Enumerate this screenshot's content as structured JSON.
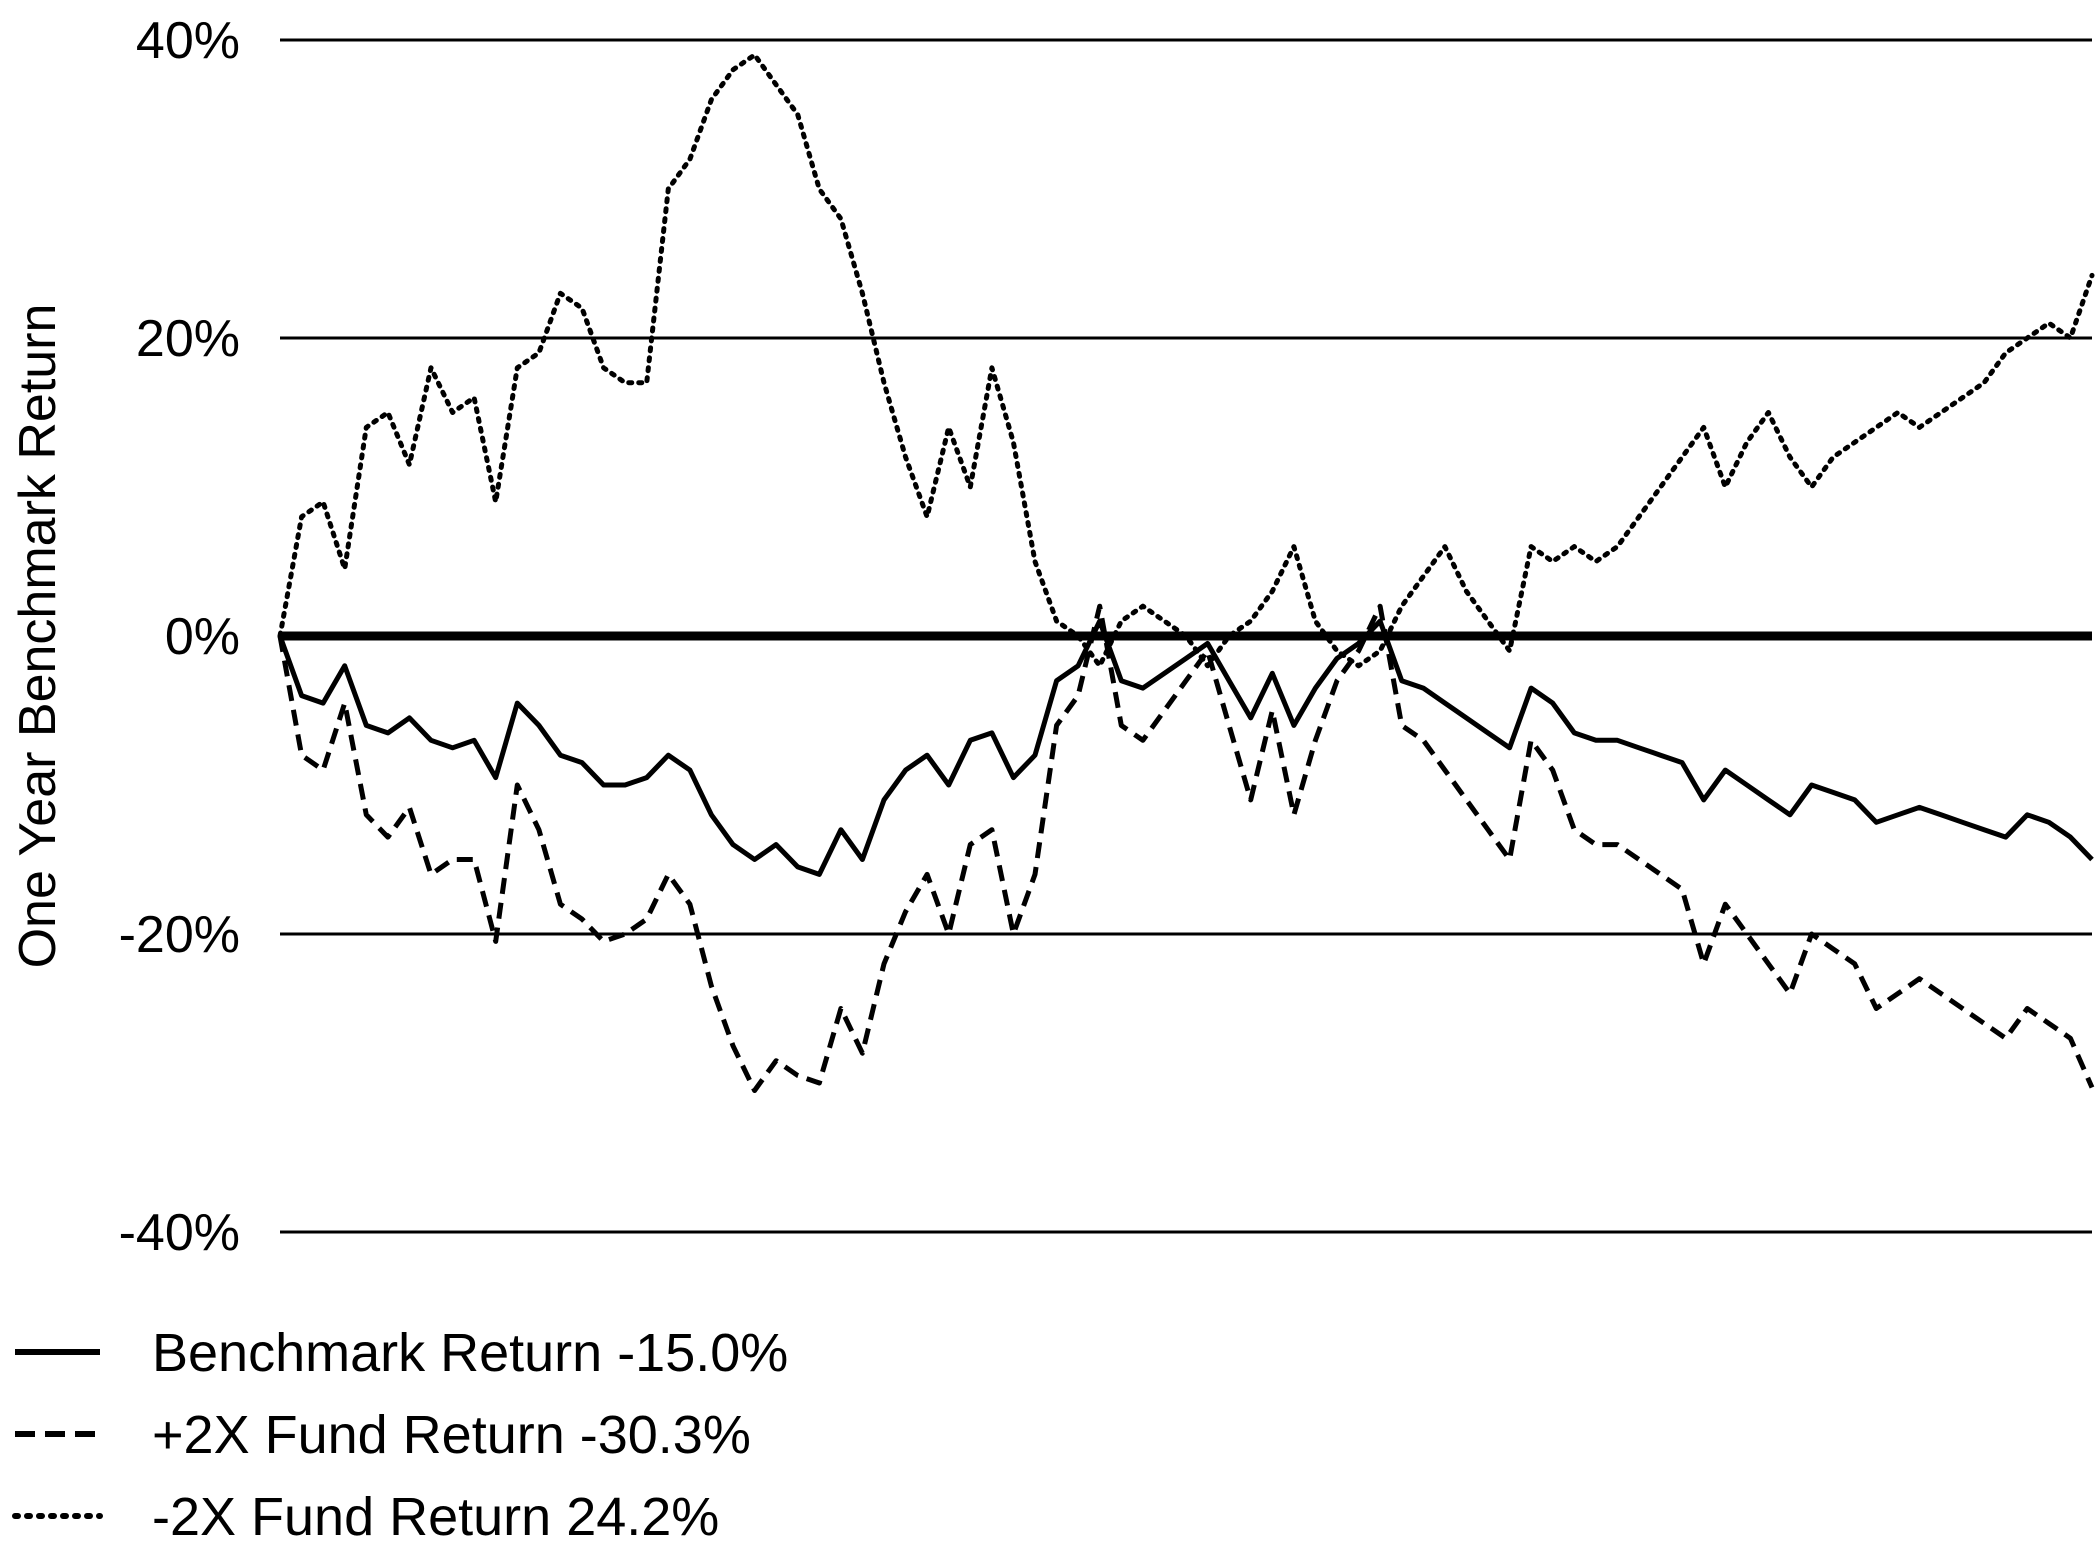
{
  "chart_data": {
    "type": "line",
    "ylabel": "One Year Benchmark Return",
    "xlabel": "",
    "ylim": [
      -40,
      40
    ],
    "yticks": [
      40,
      20,
      0,
      -20,
      -40
    ],
    "ytick_labels": [
      "40%",
      "20%",
      "0%",
      "-20%",
      "-40%"
    ],
    "grid": "horizontal",
    "legend_position": "bottom-left",
    "x": [
      0,
      3,
      6,
      9,
      12,
      15,
      18,
      21,
      24,
      27,
      30,
      33,
      36,
      39,
      42,
      45,
      48,
      51,
      54,
      57,
      60,
      63,
      66,
      69,
      72,
      75,
      78,
      81,
      84,
      87,
      90,
      93,
      96,
      99,
      102,
      105,
      108,
      111,
      114,
      117,
      120,
      123,
      126,
      129,
      132,
      135,
      138,
      141,
      144,
      147,
      150,
      153,
      156,
      159,
      162,
      165,
      168,
      171,
      174,
      177,
      180,
      183,
      186,
      189,
      192,
      195,
      198,
      201,
      204,
      207,
      210,
      213,
      216,
      219,
      222,
      225,
      228,
      231,
      234,
      237,
      240,
      243,
      246,
      249,
      252
    ],
    "series": [
      {
        "name": "Benchmark Return -15.0%",
        "style": "solid",
        "values": [
          0,
          -4,
          -4.5,
          -2,
          -6,
          -6.5,
          -5.5,
          -7,
          -7.5,
          -7,
          -9.5,
          -4.5,
          -6,
          -8,
          -8.5,
          -10,
          -10,
          -9.5,
          -8,
          -9,
          -12,
          -14,
          -15,
          -14,
          -15.5,
          -16,
          -13,
          -15,
          -11,
          -9,
          -8,
          -10,
          -7,
          -6.5,
          -9.5,
          -8,
          -3,
          -2,
          1,
          -3,
          -3.5,
          -2.5,
          -1.5,
          -0.5,
          -3,
          -5.5,
          -2.5,
          -6,
          -3.5,
          -1.5,
          -0.5,
          1,
          -3,
          -3.5,
          -4.5,
          -5.5,
          -6.5,
          -7.5,
          -3.5,
          -4.5,
          -6.5,
          -7,
          -7,
          -7.5,
          -8,
          -8.5,
          -11,
          -9,
          -10,
          -11,
          -12,
          -10,
          -10.5,
          -11,
          -12.5,
          -12,
          -11.5,
          -12,
          -12.5,
          -13,
          -13.5,
          -12,
          -12.5,
          -13.5,
          -15
        ]
      },
      {
        "name": "+2X Fund Return -30.3%",
        "style": "dashed",
        "values": [
          0,
          -8,
          -9,
          -4.5,
          -12,
          -13.5,
          -11.5,
          -16,
          -15,
          -15,
          -20.5,
          -10,
          -13,
          -18,
          -19,
          -20.5,
          -20,
          -19,
          -16,
          -18,
          -23.5,
          -27.5,
          -30.5,
          -28.5,
          -29.5,
          -30,
          -25,
          -28,
          -22,
          -18.5,
          -16,
          -20,
          -14,
          -13,
          -20,
          -16,
          -6,
          -4,
          2,
          -6,
          -7,
          -5,
          -3,
          -1,
          -6,
          -11,
          -5,
          -12,
          -7,
          -3,
          -1,
          2,
          -6,
          -7,
          -9,
          -11,
          -13,
          -15,
          -7,
          -9,
          -13,
          -14,
          -14,
          -15,
          -16,
          -17,
          -22,
          -18,
          -20,
          -22,
          -24,
          -20,
          -21,
          -22,
          -25,
          -24,
          -23,
          -24,
          -25,
          -26,
          -27,
          -25,
          -26,
          -27,
          -30.3
        ]
      },
      {
        "name": "-2X Fund Return 24.2%",
        "style": "dotted",
        "values": [
          0,
          8,
          9,
          4.5,
          14,
          15,
          11.5,
          18,
          15,
          16,
          9,
          18,
          19,
          23,
          22,
          18,
          17,
          17,
          30,
          32,
          36,
          38,
          39,
          37,
          35,
          30,
          28,
          23,
          17,
          12,
          8,
          14,
          10,
          18,
          13,
          5,
          1,
          0,
          -2,
          1,
          2,
          1,
          0,
          -2,
          0,
          1,
          3,
          6,
          1,
          -1,
          -2,
          -1,
          2,
          4,
          6,
          3,
          1,
          -1,
          6,
          5,
          6,
          5,
          6,
          8,
          10,
          12,
          14,
          10,
          13,
          15,
          12,
          10,
          12,
          13,
          14,
          15,
          14,
          15,
          16,
          17,
          19,
          20,
          21,
          20,
          24.2
        ]
      }
    ]
  },
  "legend": {
    "items": [
      {
        "label": "Benchmark Return -15.0%",
        "style": "solid"
      },
      {
        "label": "+2X Fund Return -30.3%",
        "style": "dashed"
      },
      {
        "label": "-2X Fund Return 24.2%",
        "style": "dotted"
      }
    ]
  },
  "colors": {
    "line": "#000000",
    "grid": "#000000",
    "background": "#ffffff"
  }
}
